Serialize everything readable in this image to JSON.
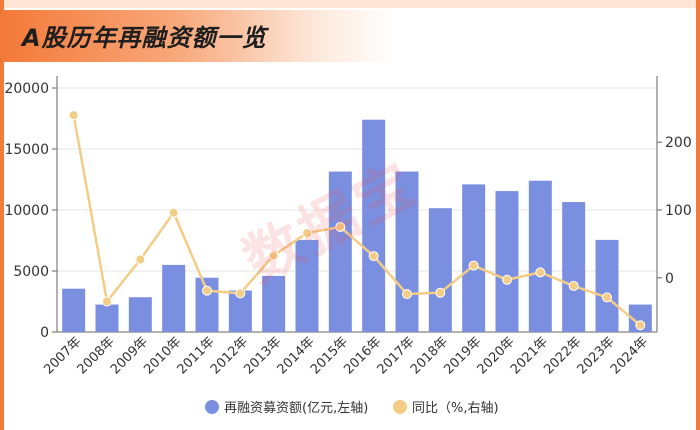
{
  "header": {
    "title": "A股历年再融资额一览"
  },
  "watermark": "数据宝",
  "colors": {
    "bar": "#7b8fe0",
    "line": "#f3cd86",
    "title_accent": "#f47a3a"
  },
  "chart_data": {
    "type": "bar",
    "title": "A股历年再融资额一览",
    "categories": [
      "2007年",
      "2008年",
      "2009年",
      "2010年",
      "2011年",
      "2012年",
      "2013年",
      "2014年",
      "2015年",
      "2016年",
      "2017年",
      "2018年",
      "2019年",
      "2020年",
      "2021年",
      "2022年",
      "2023年",
      "2024年"
    ],
    "series": [
      {
        "name": "再融资募资额(亿元,左轴)",
        "type": "bar",
        "axis": "left",
        "values": [
          3550,
          2250,
          2850,
          5500,
          4450,
          3400,
          4600,
          7550,
          13150,
          17400,
          13150,
          10150,
          12100,
          11550,
          12400,
          10650,
          7550,
          2250
        ]
      },
      {
        "name": "同比（%,右轴)",
        "type": "line",
        "axis": "right",
        "values": [
          240,
          -35,
          27,
          96,
          -19,
          -23,
          33,
          66,
          75,
          32,
          -24,
          -22,
          18,
          -3,
          8,
          -12,
          -29,
          -70
        ]
      }
    ],
    "y_left": {
      "lim": [
        0,
        20000
      ],
      "ticks": [
        0,
        5000,
        10000,
        15000,
        20000
      ]
    },
    "y_right": {
      "lim": [
        -80,
        280
      ],
      "ticks": [
        0,
        100,
        200
      ]
    },
    "legend_position": "bottom",
    "grid": true
  }
}
